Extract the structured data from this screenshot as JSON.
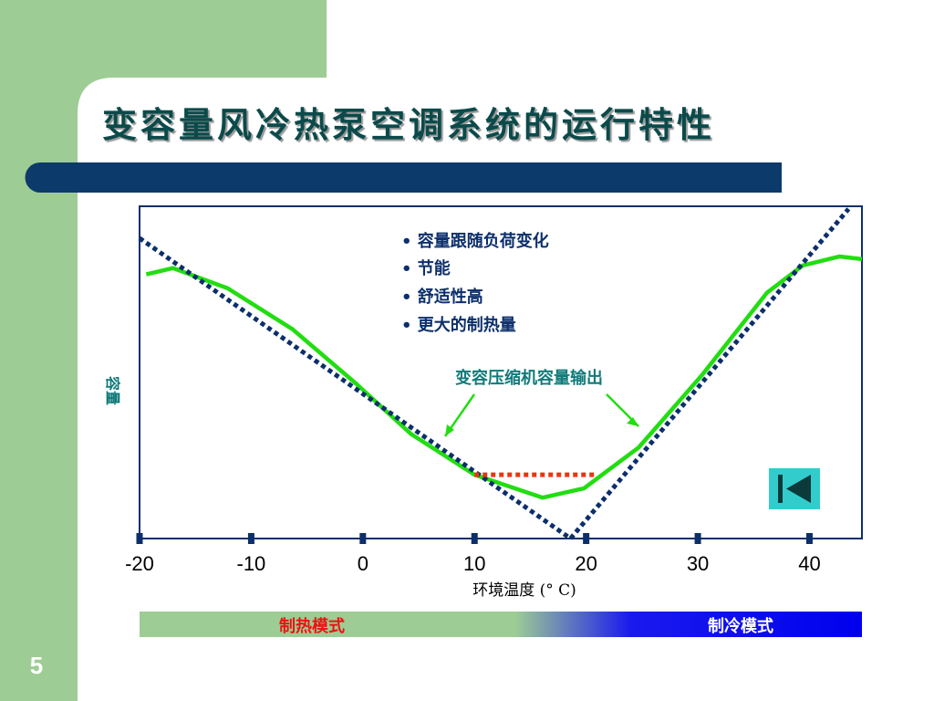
{
  "slide_number": "5",
  "chart_data": {
    "type": "line",
    "title": "变容量风冷热泵空调系统的运行特性",
    "x_label": "环境温度 (° C)",
    "y_label": "容量",
    "annotations": [
      "• 容量跟随负荷变化",
      "• 节能",
      "• 舒适性高",
      "• 更大的制热量",
      "变容压缩机容量输出"
    ],
    "mode_labels": [
      "制热模式",
      "制冷模式"
    ],
    "xlim": [
      -20,
      44.7
    ],
    "xticks": [
      -20,
      -10,
      0,
      10,
      20,
      30,
      40
    ],
    "ylim": [
      0,
      100
    ],
    "series": [
      {
        "color": "#22dd11",
        "style": "solid",
        "x": [
          -19.4,
          -17,
          -12.1,
          -6.3,
          -0.6,
          4.3,
          10,
          16.1,
          19.8,
          24.7,
          30.4,
          36.2,
          39.4,
          42.7,
          44.7
        ],
        "values": [
          79.5,
          81.4,
          75.3,
          63,
          46.6,
          31.5,
          19.2,
          12.3,
          15.1,
          27.4,
          49.3,
          74,
          82.2,
          84.9,
          84.1
        ]
      },
      {
        "color": "#0c2f6b",
        "style": "dotted",
        "x": [
          -20,
          18.6,
          43.5
        ],
        "values": [
          90.4,
          0,
          99.2
        ]
      },
      {
        "color": "#ee3311",
        "style": "dotted",
        "x": [
          10,
          21
        ],
        "values": [
          19.2,
          19.2
        ]
      }
    ]
  }
}
